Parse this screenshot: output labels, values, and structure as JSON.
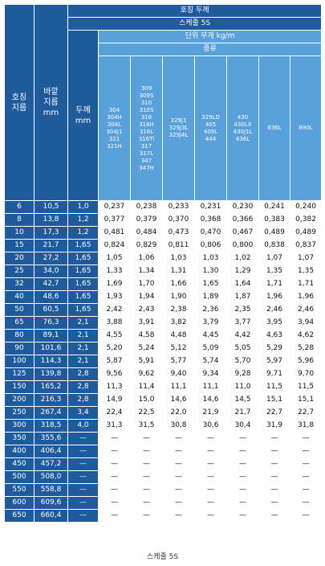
{
  "header": {
    "nominal_thickness": "호칭 두께",
    "schedule": "스케줄 5S",
    "unit_weight": "단위 무게 kg/m",
    "type": "종류",
    "nominal_dia": "호칭 지름",
    "outer_dia": "바깥 지름 mm",
    "thickness": "두께 mm"
  },
  "materials": [
    "304\n304H\n304L\n304J1\n321\n321H",
    "309\n309S\n310\n310S\n316\n316H\n316L\n316Ti\n317\n317L\n347\n347H",
    "329J1\n329J3L\n329J4L",
    "329LD\n405\n409L\n444",
    "430\n430LX\n430J1L\n436L",
    "836L",
    "890L"
  ],
  "rows": [
    [
      "6",
      "10.5",
      "1.0",
      "0.237",
      "0.238",
      "0.233",
      "0.231",
      "0.230",
      "0.241",
      "0.240"
    ],
    [
      "8",
      "13.8",
      "1.2",
      "0.377",
      "0.379",
      "0.370",
      "0.368",
      "0.366",
      "0.383",
      "0.382"
    ],
    [
      "10",
      "17.3",
      "1.2",
      "0.481",
      "0.484",
      "0.473",
      "0.470",
      "0.467",
      "0.489",
      "0.489"
    ],
    [
      "15",
      "21.7",
      "1.65",
      "0.824",
      "0.829",
      "0.811",
      "0.806",
      "0.800",
      "0.838",
      "0.837"
    ],
    [
      "20",
      "27.2",
      "1.65",
      "1.05",
      "1.06",
      "1.03",
      "1.03",
      "1.02",
      "1.07",
      "1.07"
    ],
    [
      "25",
      "34.0",
      "1.65",
      "1.33",
      "1.34",
      "1.31",
      "1.30",
      "1.29",
      "1.35",
      "1.35"
    ],
    [
      "32",
      "42.7",
      "1.65",
      "1.69",
      "1.70",
      "1.66",
      "1.65",
      "1.64",
      "1.71",
      "1.71"
    ],
    [
      "40",
      "48.6",
      "1.65",
      "1.93",
      "1.94",
      "1.90",
      "1.89",
      "1.87",
      "1.96",
      "1.96"
    ],
    [
      "50",
      "60.5",
      "1.65",
      "2.42",
      "2.43",
      "2.38",
      "2.36",
      "2.35",
      "2.46",
      "2.46"
    ],
    [
      "65",
      "76.3",
      "2.1",
      "3.88",
      "3.91",
      "3.82",
      "3.79",
      "3.77",
      "3.95",
      "3.94"
    ],
    [
      "80",
      "89.1",
      "2.1",
      "4.55",
      "4.58",
      "4.48",
      "4.45",
      "4.42",
      "4.63",
      "4.62"
    ],
    [
      "90",
      "101.6",
      "2.1",
      "5.20",
      "5.24",
      "5.12",
      "5.09",
      "5.05",
      "5.29",
      "5.28"
    ],
    [
      "100",
      "114.3",
      "2.1",
      "5.87",
      "5.91",
      "5.77",
      "5.74",
      "5.70",
      "5.97",
      "5.96"
    ],
    [
      "125",
      "139.8",
      "2.8",
      "9.56",
      "9.62",
      "9.40",
      "9.34",
      "9.28",
      "9.71",
      "9.70"
    ],
    [
      "150",
      "165.2",
      "2.8",
      "11.3",
      "11.4",
      "11.1",
      "11.1",
      "11.0",
      "11.5",
      "11.5"
    ],
    [
      "200",
      "216.3",
      "2.8",
      "14.9",
      "15.0",
      "14.6",
      "14.6",
      "14.5",
      "15.1",
      "15.1"
    ],
    [
      "250",
      "267.4",
      "3.4",
      "22.4",
      "22.5",
      "22.0",
      "21.9",
      "21.7",
      "22.7",
      "22.7"
    ],
    [
      "300",
      "318.5",
      "4.0",
      "31.3",
      "31.5",
      "30.8",
      "30.6",
      "30.4",
      "31.9",
      "31.8"
    ],
    [
      "350",
      "355.6",
      "—",
      "—",
      "—",
      "—",
      "—",
      "—",
      "—",
      "—"
    ],
    [
      "400",
      "406.4",
      "—",
      "—",
      "—",
      "—",
      "—",
      "—",
      "—",
      "—"
    ],
    [
      "450",
      "457.2",
      "—",
      "—",
      "—",
      "—",
      "—",
      "—",
      "—",
      "—"
    ],
    [
      "500",
      "508.0",
      "—",
      "—",
      "—",
      "—",
      "—",
      "—",
      "—",
      "—"
    ],
    [
      "550",
      "558.8",
      "—",
      "—",
      "—",
      "—",
      "—",
      "—",
      "—",
      "—"
    ],
    [
      "600",
      "609.6",
      "—",
      "—",
      "—",
      "—",
      "—",
      "—",
      "—",
      "—"
    ],
    [
      "650",
      "660.4",
      "—",
      "—",
      "—",
      "—",
      "—",
      "—",
      "—",
      "—"
    ]
  ],
  "caption": "스케줄 5S"
}
